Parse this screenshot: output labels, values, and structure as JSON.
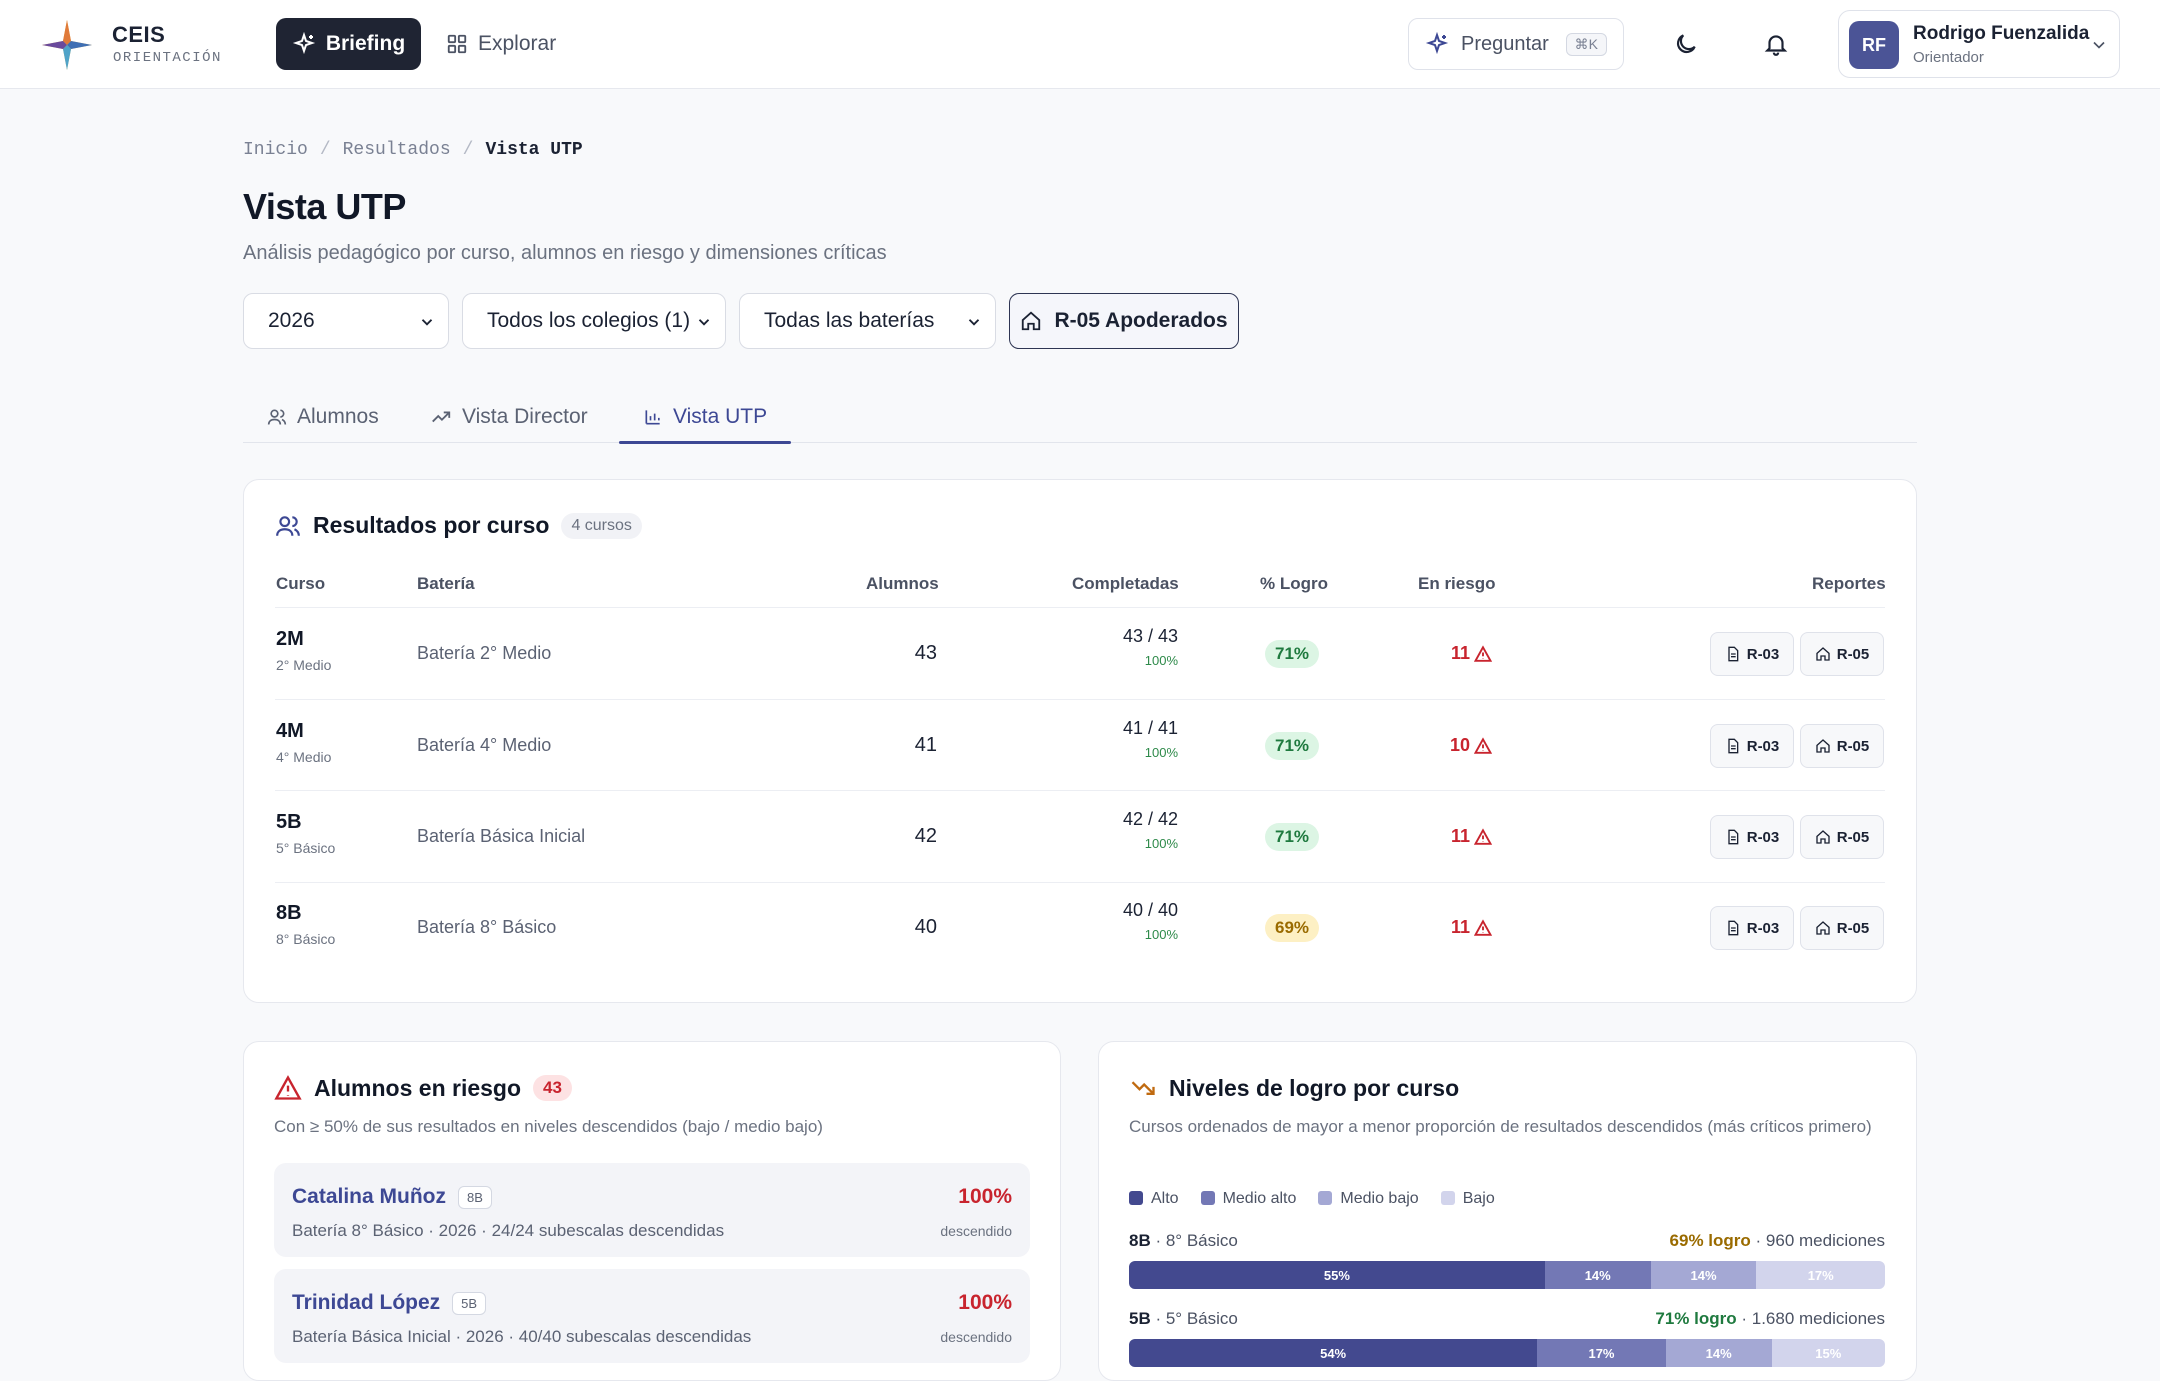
{
  "brand": {
    "name": "CEIS",
    "sub": "ORIENTACIÓN"
  },
  "nav": {
    "briefing": "Briefing",
    "explorar": "Explorar"
  },
  "ask": {
    "label": "Preguntar",
    "shortcut": "⌘K"
  },
  "user": {
    "initials": "RF",
    "name": "Rodrigo Fuenzalida",
    "role": "Orientador"
  },
  "breadcrumb": [
    "Inicio",
    "Resultados",
    "Vista UTP"
  ],
  "page": {
    "title": "Vista UTP",
    "subtitle": "Análisis pedagógico por curso, alumnos en riesgo y dimensiones críticas"
  },
  "filters": {
    "year": "2026",
    "colegio": "Todos los colegios (1)",
    "bateria": "Todas las baterías",
    "r05_button": "R-05 Apoderados"
  },
  "tabs": [
    "Alumnos",
    "Vista Director",
    "Vista UTP"
  ],
  "results": {
    "title": "Resultados por curso",
    "count": "4 cursos",
    "headers": {
      "curso": "Curso",
      "bateria": "Batería",
      "alumnos": "Alumnos",
      "completadas": "Completadas",
      "logro": "% Logro",
      "riesgo": "En riesgo",
      "reportes": "Reportes"
    },
    "rows": [
      {
        "code": "2M",
        "level": "2° Medio",
        "bateria": "Batería 2° Medio",
        "alumnos": "43",
        "completadas": "43 / 43",
        "pct": "100%",
        "logro": "71%",
        "riesgo": "11",
        "r03": "R-03",
        "r05": "R-05"
      },
      {
        "code": "4M",
        "level": "4° Medio",
        "bateria": "Batería 4° Medio",
        "alumnos": "41",
        "completadas": "41 / 41",
        "pct": "100%",
        "logro": "71%",
        "riesgo": "10",
        "r03": "R-03",
        "r05": "R-05"
      },
      {
        "code": "5B",
        "level": "5° Básico",
        "bateria": "Batería Básica Inicial",
        "alumnos": "42",
        "completadas": "42 / 42",
        "pct": "100%",
        "logro": "71%",
        "riesgo": "11",
        "r03": "R-03",
        "r05": "R-05"
      },
      {
        "code": "8B",
        "level": "8° Básico",
        "bateria": "Batería 8° Básico",
        "alumnos": "40",
        "completadas": "40 / 40",
        "pct": "100%",
        "logro": "69%",
        "riesgo": "11",
        "r03": "R-03",
        "r05": "R-05"
      }
    ]
  },
  "riesgo": {
    "title": "Alumnos en riesgo",
    "count": "43",
    "desc": "Con ≥ 50% de sus resultados en niveles descendidos (bajo / medio bajo)",
    "students": [
      {
        "name": "Catalina Muñoz",
        "tag": "8B",
        "meta": "Batería 8° Básico · 2026 · 24/24 subescalas descendidas",
        "pct": "100%",
        "label": "descendido"
      },
      {
        "name": "Trinidad López",
        "tag": "5B",
        "meta": "Batería Básica Inicial · 2026 · 40/40 subescalas descendidas",
        "pct": "100%",
        "label": "descendido"
      }
    ]
  },
  "niveles": {
    "title": "Niveles de logro por curso",
    "desc": "Cursos ordenados de mayor a menor proporción de resultados descendidos (más críticos primero)",
    "legend": [
      "Alto",
      "Medio alto",
      "Medio bajo",
      "Bajo"
    ],
    "colors": [
      "#43498f",
      "#7378b5",
      "#a4a8d4",
      "#d2d4ec"
    ],
    "rows": [
      {
        "code": "8B",
        "level": "· 8° Básico",
        "logro": "69% logro",
        "mediciones": "· 960 mediciones",
        "segments": [
          55,
          14,
          14,
          17
        ],
        "labels": [
          "55%",
          "14%",
          "14%",
          "17%"
        ]
      },
      {
        "code": "5B",
        "level": "· 5° Básico",
        "logro": "71% logro",
        "mediciones": "· 1.680 mediciones",
        "segments": [
          54,
          17,
          14,
          15
        ],
        "labels": [
          "54%",
          "17%",
          "14%",
          "15%"
        ]
      }
    ]
  }
}
